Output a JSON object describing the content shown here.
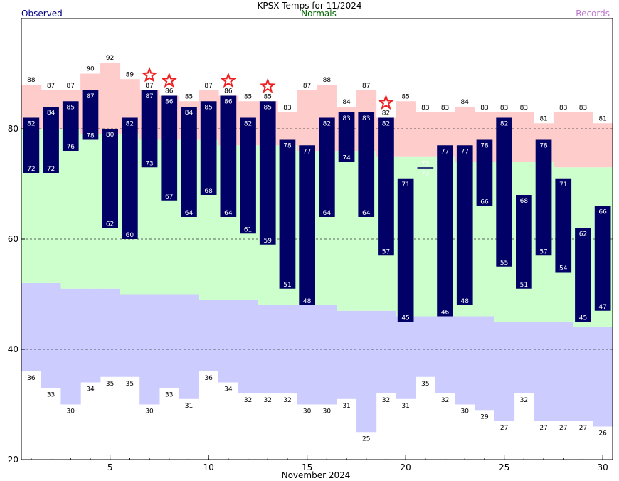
{
  "chart_data": {
    "type": "bar",
    "title": "KPSX Temps for 11/2024",
    "xlabel": "November 2024",
    "ylabel": "",
    "legend": {
      "observed": "Observed",
      "normals": "Normals",
      "records": "Records"
    },
    "xlim": [
      0.5,
      30.5
    ],
    "ylim": [
      20,
      100
    ],
    "y_ticks": [
      20,
      40,
      60,
      80
    ],
    "x_ticks": [
      5,
      10,
      15,
      20,
      25,
      30
    ],
    "grid": "dashed horizontal at 40, 60, 80",
    "days": [
      1,
      2,
      3,
      4,
      5,
      6,
      7,
      8,
      9,
      10,
      11,
      12,
      13,
      14,
      15,
      16,
      17,
      18,
      19,
      20,
      21,
      22,
      23,
      24,
      25,
      26,
      27,
      28,
      29,
      30
    ],
    "observed_high": [
      82,
      84,
      85,
      87,
      80,
      82,
      87,
      86,
      84,
      85,
      86,
      82,
      85,
      78,
      77,
      82,
      83,
      83,
      82,
      71,
      73,
      77,
      77,
      78,
      82,
      68,
      78,
      71,
      62,
      66
    ],
    "observed_low": [
      72,
      72,
      76,
      78,
      62,
      60,
      73,
      67,
      64,
      68,
      64,
      61,
      59,
      51,
      48,
      64,
      74,
      64,
      57,
      45,
      73,
      46,
      48,
      66,
      55,
      51,
      57,
      54,
      45,
      47
    ],
    "normal_high": [
      80,
      80,
      80,
      79,
      79,
      79,
      78,
      78,
      78,
      78,
      77,
      77,
      77,
      77,
      76,
      76,
      76,
      76,
      75,
      75,
      75,
      75,
      74,
      74,
      74,
      74,
      74,
      73,
      73,
      73
    ],
    "normal_low": [
      52,
      52,
      51,
      51,
      51,
      50,
      50,
      50,
      50,
      49,
      49,
      49,
      48,
      48,
      48,
      48,
      47,
      47,
      47,
      46,
      46,
      46,
      46,
      46,
      45,
      45,
      45,
      45,
      44,
      44
    ],
    "record_high": [
      88,
      87,
      87,
      90,
      92,
      89,
      87,
      86,
      85,
      87,
      86,
      85,
      85,
      83,
      87,
      88,
      84,
      87,
      82,
      85,
      83,
      83,
      84,
      83,
      83,
      83,
      81,
      83,
      83,
      81
    ],
    "record_low": [
      36,
      33,
      30,
      34,
      35,
      35,
      30,
      33,
      31,
      36,
      34,
      32,
      32,
      32,
      30,
      30,
      31,
      25,
      32,
      31,
      35,
      32,
      30,
      29,
      27,
      32,
      27,
      27,
      27,
      26
    ],
    "record_set_days": [
      7,
      8,
      11,
      13,
      19
    ],
    "colors": {
      "observed": "#000066",
      "normal": "#ccffcc",
      "record_high": "#ffcccc",
      "record_low": "#ccccff",
      "star": "#ee2222",
      "title_observed": "#000080",
      "title_normals": "#006600",
      "title_records": "#bb77cc"
    }
  }
}
